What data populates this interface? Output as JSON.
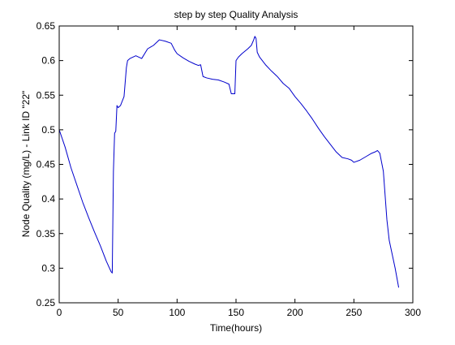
{
  "chart_data": {
    "type": "line",
    "title": "step by step Quality Analysis",
    "xlabel": "Time(hours)",
    "ylabel": "Node Quality (mg/L) - Link ID \"22\"",
    "xlim": [
      0,
      300
    ],
    "ylim": [
      0.25,
      0.65
    ],
    "xticks": [
      0,
      50,
      100,
      150,
      200,
      250,
      300
    ],
    "yticks": [
      0.25,
      0.3,
      0.35,
      0.4,
      0.45,
      0.5,
      0.55,
      0.6,
      0.65
    ],
    "xtick_labels": [
      "0",
      "50",
      "100",
      "150",
      "200",
      "250",
      "300"
    ],
    "ytick_labels": [
      "0.25",
      "0.3",
      "0.35",
      "0.4",
      "0.45",
      "0.5",
      "0.55",
      "0.6",
      "0.65"
    ],
    "grid": false,
    "line_color": "#0000cc",
    "series": [
      {
        "x": [
          0,
          5,
          10,
          15,
          20,
          25,
          30,
          35,
          40,
          44,
          45,
          46,
          47,
          48,
          49,
          50,
          52,
          55,
          57,
          58,
          60,
          65,
          70,
          75,
          78,
          80,
          85,
          90,
          95,
          98,
          100,
          105,
          110,
          115,
          118,
          120,
          122,
          125,
          130,
          135,
          140,
          144,
          146,
          148,
          149,
          150,
          152,
          155,
          160,
          163,
          165,
          166,
          167,
          168,
          170,
          175,
          180,
          185,
          190,
          195,
          200,
          205,
          210,
          215,
          220,
          225,
          230,
          235,
          240,
          245,
          248,
          250,
          255,
          260,
          265,
          268,
          270,
          272,
          275,
          278,
          280,
          285,
          288
        ],
        "y": [
          0.5,
          0.475,
          0.445,
          0.42,
          0.395,
          0.373,
          0.352,
          0.332,
          0.31,
          0.295,
          0.293,
          0.44,
          0.495,
          0.498,
          0.535,
          0.532,
          0.535,
          0.548,
          0.59,
          0.6,
          0.603,
          0.607,
          0.603,
          0.617,
          0.62,
          0.622,
          0.63,
          0.628,
          0.625,
          0.615,
          0.61,
          0.604,
          0.599,
          0.595,
          0.593,
          0.594,
          0.577,
          0.575,
          0.573,
          0.572,
          0.569,
          0.566,
          0.552,
          0.552,
          0.552,
          0.6,
          0.605,
          0.61,
          0.617,
          0.622,
          0.63,
          0.635,
          0.632,
          0.612,
          0.605,
          0.594,
          0.585,
          0.577,
          0.567,
          0.56,
          0.548,
          0.538,
          0.527,
          0.515,
          0.502,
          0.49,
          0.479,
          0.468,
          0.46,
          0.458,
          0.456,
          0.453,
          0.456,
          0.461,
          0.466,
          0.468,
          0.47,
          0.466,
          0.44,
          0.37,
          0.34,
          0.3,
          0.272
        ]
      }
    ]
  }
}
